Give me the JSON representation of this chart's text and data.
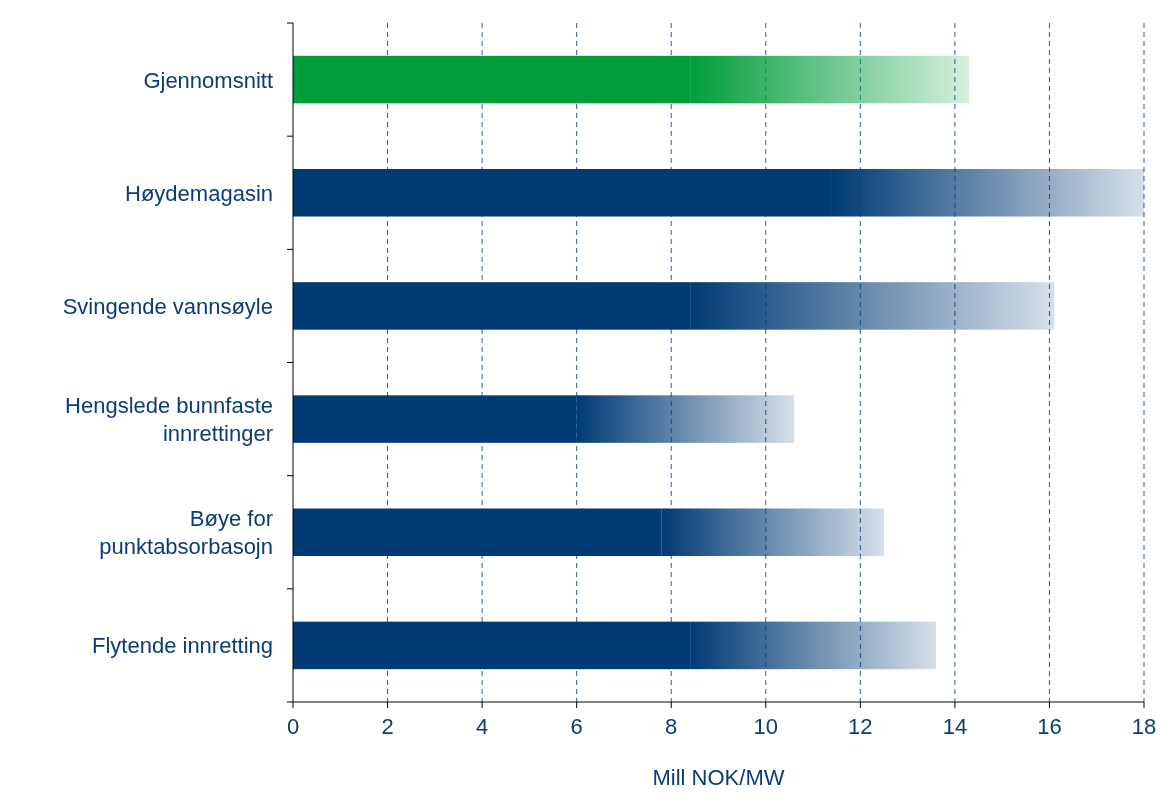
{
  "chart_data": {
    "type": "bar",
    "orientation": "horizontal",
    "stacked": true,
    "xlabel": "Mill NOK/MW",
    "categories": [
      "Gjennomsnitt",
      "Høydemagasin",
      "Svingende vannsøyle",
      "Hengslede bunnfaste innrettinger",
      "Bøye for punktabsorbasojn",
      "Flytende innretting"
    ],
    "series": [
      {
        "colors": [
          "#009e3a",
          "#003b75",
          "#003b75",
          "#003b75",
          "#003b75",
          "#003b75"
        ],
        "values": [
          8.4,
          11.4,
          8.4,
          6.0,
          7.8,
          8.4
        ]
      },
      {
        "colors": [
          "#009e3a",
          "#003b75",
          "#003b75",
          "#003b75",
          "#003b75",
          "#003b75"
        ],
        "values": [
          5.9,
          6.6,
          7.7,
          4.6,
          4.7,
          5.2
        ]
      }
    ],
    "xlim": [
      0,
      18
    ],
    "xticks": [
      0,
      2,
      4,
      6,
      8,
      10,
      12,
      14,
      16,
      18
    ],
    "grid": "x"
  }
}
